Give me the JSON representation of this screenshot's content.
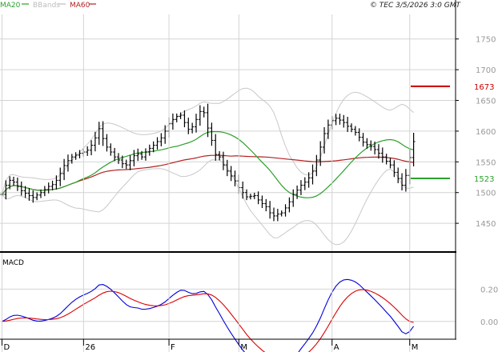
{
  "legend": {
    "items": [
      {
        "label": "MA20",
        "color": "#2ca02c"
      },
      {
        "label": "BBands",
        "color": "#bdbdbd"
      },
      {
        "label": "MA60",
        "color": "#b22222"
      }
    ]
  },
  "copyright": "© TEC 3/5/2026 3:0 GMT",
  "macd_label": "MACD",
  "chart_data": [
    {
      "type": "candlestick-ohlc",
      "ylim": [
        1415,
        1790
      ],
      "y_ticks": [
        1450,
        1500,
        1550,
        1600,
        1650,
        1700,
        1750
      ],
      "x_labels": [
        "D",
        "26",
        "F",
        "M",
        "A",
        "M"
      ],
      "x_label_positions": [
        0,
        21,
        43,
        61,
        85,
        105
      ],
      "n_bars": 107,
      "close": [
        1497,
        1512,
        1520,
        1517,
        1510,
        1503,
        1499,
        1495,
        1492,
        1496,
        1500,
        1505,
        1510,
        1513,
        1520,
        1531,
        1544,
        1552,
        1558,
        1561,
        1564,
        1566,
        1569,
        1577,
        1589,
        1604,
        1588,
        1574,
        1566,
        1558,
        1553,
        1547,
        1545,
        1552,
        1560,
        1563,
        1558,
        1566,
        1572,
        1577,
        1583,
        1589,
        1600,
        1612,
        1619,
        1624,
        1626,
        1614,
        1603,
        1607,
        1619,
        1632,
        1630,
        1605,
        1585,
        1562,
        1558,
        1545,
        1535,
        1527,
        1519,
        1508,
        1500,
        1493,
        1494,
        1495,
        1488,
        1482,
        1477,
        1467,
        1462,
        1465,
        1467,
        1475,
        1485,
        1497,
        1504,
        1512,
        1517,
        1524,
        1535,
        1553,
        1574,
        1596,
        1610,
        1617,
        1621,
        1618,
        1614,
        1608,
        1603,
        1598,
        1590,
        1582,
        1578,
        1575,
        1570,
        1564,
        1558,
        1551,
        1545,
        1533,
        1523,
        1512,
        1528,
        1557,
        1583
      ],
      "last_close": 1583,
      "price_labels": [
        {
          "value": 1673,
          "label": "1673",
          "color": "#cc0000"
        },
        {
          "value": 1523,
          "label": "1523",
          "color": "#2ca02c"
        }
      ],
      "series": [
        {
          "name": "MA20",
          "color": "#2ca02c"
        },
        {
          "name": "BBands",
          "color": "#bdbdbd"
        },
        {
          "name": "MA60",
          "color": "#b22222"
        }
      ]
    },
    {
      "type": "line",
      "title": "MACD",
      "ylim": [
        -0.1,
        0.38
      ],
      "y_ticks": [
        0.0,
        0.2
      ],
      "y_tick_labels": [
        "0.00",
        "0.20"
      ],
      "series": [
        {
          "name": "",
          "color": "#0000dd"
        },
        {
          "name": "",
          "color": "#dd0000"
        }
      ]
    }
  ]
}
